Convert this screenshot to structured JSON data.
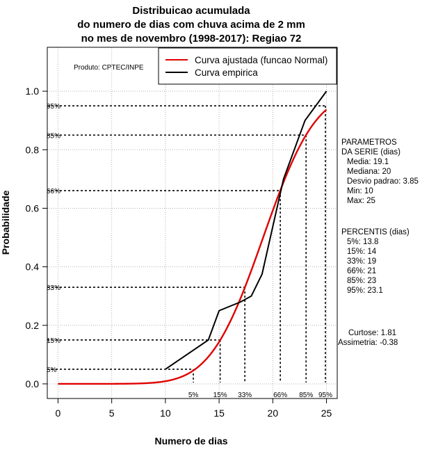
{
  "chart_data": {
    "type": "line",
    "title_lines": [
      "Distribuicao acumulada",
      "do numero de dias com chuva acima de 2 mm",
      "no mes de novembro (1998-2017): Regiao 72"
    ],
    "xlabel": "Numero de dias",
    "ylabel": "Probabilidade",
    "xlim": [
      -1,
      26
    ],
    "ylim": [
      -0.05,
      1.15
    ],
    "xticks": [
      0,
      5,
      10,
      15,
      20,
      25
    ],
    "yticks": [
      0.0,
      0.2,
      0.4,
      0.6,
      0.8,
      1.0
    ],
    "xtick_labels": [
      "0",
      "5",
      "10",
      "15",
      "20",
      "25"
    ],
    "ytick_labels": [
      "0.0",
      "0.2",
      "0.4",
      "0.6",
      "0.8",
      "1.0"
    ],
    "grid": true,
    "credit": "Produto: CPTEC/INPE",
    "normal_fit": {
      "mean": 19.1,
      "sd": 3.85,
      "x_range": [
        0,
        25
      ]
    },
    "series": [
      {
        "name": "Curva ajustada (funcao Normal)",
        "color": "#e00000",
        "kind": "normal_cdf"
      },
      {
        "name": "Curva empirica",
        "color": "#000000",
        "kind": "empirical",
        "x": [
          10,
          14,
          15,
          17,
          18,
          19,
          21,
          23,
          25
        ],
        "y": [
          0.05,
          0.15,
          0.25,
          0.28,
          0.3,
          0.375,
          0.7,
          0.9,
          1.0
        ]
      }
    ],
    "legend": {
      "position": "top-right",
      "entries": [
        "Curva ajustada (funcao Normal)",
        "Curva empirica"
      ]
    },
    "percentile_lines": [
      {
        "label": "5%",
        "prob": 0.05,
        "x": 12.6
      },
      {
        "label": "15%",
        "prob": 0.15,
        "x": 15.1
      },
      {
        "label": "33%",
        "prob": 0.33,
        "x": 17.4
      },
      {
        "label": "66%",
        "prob": 0.66,
        "x": 20.7
      },
      {
        "label": "85%",
        "prob": 0.85,
        "x": 23.1
      },
      {
        "label": "95%",
        "prob": 0.95,
        "x": 24.9
      }
    ],
    "stats_panel": {
      "parametros_title": [
        "PARAMETROS",
        "DA SERIE (dias)"
      ],
      "parametros": [
        "Media: 19.1",
        "Mediana: 20",
        "Desvio padrao: 3.85",
        "Min: 10",
        "Max: 25"
      ],
      "percentis_title": "PERCENTIS (dias)",
      "percentis": [
        "5%: 13.8",
        "15%: 14",
        "33%: 19",
        "66%: 21",
        "85%: 23",
        "95%: 23.1"
      ],
      "curtose": "Curtose: 1.81",
      "assimetria": "Assimetria: -0.38"
    }
  }
}
